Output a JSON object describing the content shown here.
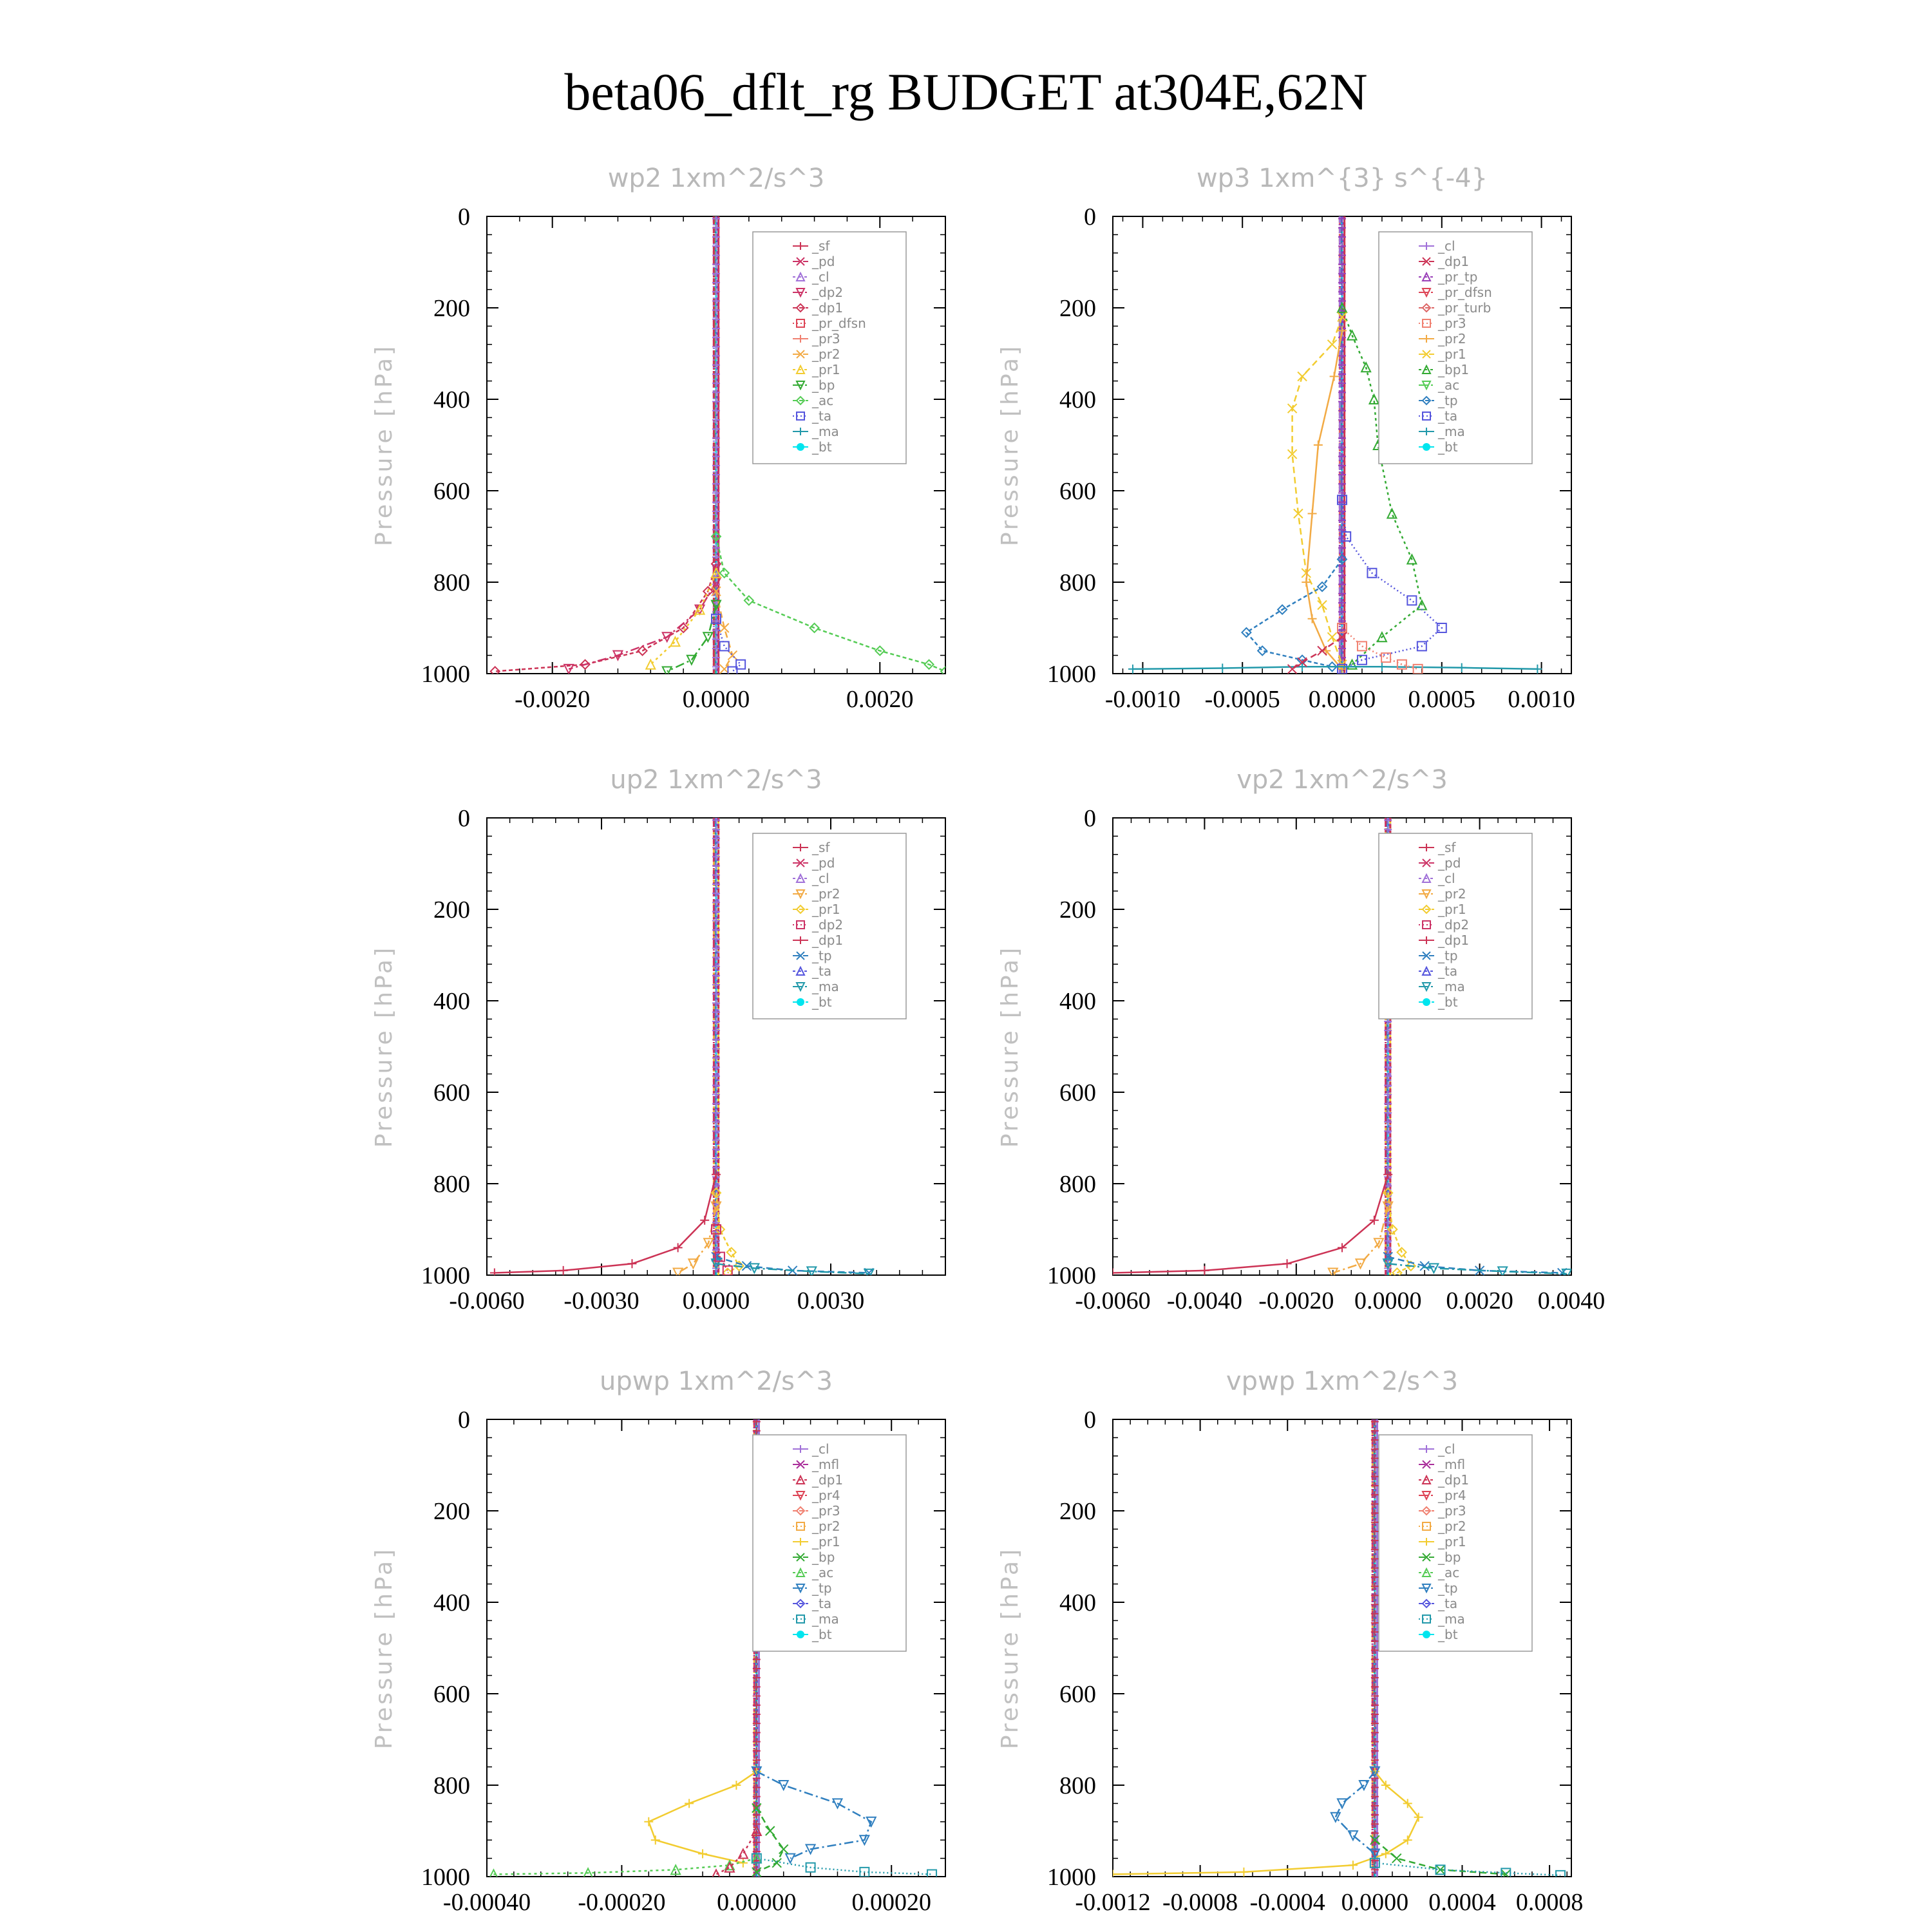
{
  "figure": {
    "title": "beta06_dflt_rg  BUDGET at304E,62N",
    "y_axis_label": "Pressure [hPa]"
  },
  "colors": {
    "_sf": "#cc3355",
    "_pd": "#cc3366",
    "_cl": "#a070d8",
    "_dp2": "#cc3366",
    "_dp1": "#cc3355",
    "_pr_dfsn": "#dd4455",
    "_pr_tp": "#9a40b8",
    "_pr_turb": "#dd6666",
    "_mfl": "#aa2d9a",
    "_pr4": "#dd4455",
    "_pr3": "#f08070",
    "_pr2": "#f2aa44",
    "_pr1": "#f2cc30",
    "_bp": "#33aa33",
    "_bp1": "#33aa33",
    "_ac": "#55cc55",
    "_tp": "#2f7fbf",
    "_ta": "#5555dd",
    "_ma": "#2299aa",
    "_bt": "#00e5ee"
  },
  "chart_data": [
    {
      "type": "line",
      "title": "wp2   1xm^2/s^3",
      "ylabel": "Pressure [hPa]",
      "ylim": [
        1000,
        0
      ],
      "xlim": [
        -0.0028,
        0.0028
      ],
      "xticks": [
        -0.002,
        0.0,
        0.002
      ],
      "xtick_labels": [
        "-0.0020",
        "0.0000",
        "0.0020"
      ],
      "yticks": [
        0,
        200,
        400,
        600,
        800,
        1000
      ],
      "ytick_labels": [
        "0",
        "200",
        "400",
        "600",
        "800",
        "1000"
      ],
      "legend": [
        "_sf",
        "_pd",
        "_cl",
        "_dp2",
        "_dp1",
        "_pr_dfsn",
        "_pr3",
        "_pr2",
        "_pr1",
        "_bp",
        "_ac",
        "_ta",
        "_ma",
        "_bt"
      ],
      "series": [
        {
          "name": "_ac",
          "x": [
            0,
            0.0001,
            0.0004,
            0.0012,
            0.002,
            0.0026,
            0.0028
          ],
          "y": [
            700,
            780,
            840,
            900,
            950,
            980,
            995
          ]
        },
        {
          "name": "_dp1",
          "x": [
            0,
            -0.0001,
            -0.0004,
            -0.0009,
            -0.0016,
            -0.0027
          ],
          "y": [
            760,
            820,
            900,
            950,
            980,
            995
          ]
        },
        {
          "name": "_dp2",
          "x": [
            0,
            -0.0002,
            -0.0006,
            -0.0012,
            -0.0018
          ],
          "y": [
            800,
            860,
            920,
            960,
            990
          ]
        },
        {
          "name": "_pr1",
          "x": [
            0,
            -0.0002,
            -0.0005,
            -0.0008
          ],
          "y": [
            780,
            860,
            930,
            980
          ]
        },
        {
          "name": "_pr2",
          "x": [
            0,
            0.0001,
            0.0002,
            0.0001
          ],
          "y": [
            820,
            900,
            960,
            990
          ]
        },
        {
          "name": "_bp",
          "x": [
            0,
            -0.0001,
            -0.0003,
            -0.0006
          ],
          "y": [
            850,
            920,
            970,
            995
          ]
        },
        {
          "name": "_ta",
          "x": [
            0,
            0.0001,
            0.0003,
            0.0002
          ],
          "y": [
            880,
            940,
            980,
            995
          ]
        }
      ]
    },
    {
      "type": "line",
      "title": "wp3   1xm^{3} s^{-4}",
      "ylabel": "Pressure [hPa]",
      "ylim": [
        1000,
        0
      ],
      "xlim": [
        -0.00115,
        0.00115
      ],
      "xticks": [
        -0.001,
        -0.0005,
        0.0,
        0.0005,
        0.001
      ],
      "xtick_labels": [
        "-0.0010",
        "-0.0005",
        "0.0000",
        "0.0005",
        "0.0010"
      ],
      "yticks": [
        0,
        200,
        400,
        600,
        800,
        1000
      ],
      "ytick_labels": [
        "0",
        "200",
        "400",
        "600",
        "800",
        "1000"
      ],
      "legend": [
        "_cl",
        "_dp1",
        "_pr_tp",
        "_pr_dfsn",
        "_pr_turb",
        "_pr3",
        "_pr2",
        "_pr1",
        "_bp1",
        "_ac",
        "_tp",
        "_ta",
        "_ma",
        "_bt"
      ],
      "series": [
        {
          "name": "_bp1",
          "x": [
            0,
            5e-05,
            0.00012,
            0.00016,
            0.00018,
            0.00025,
            0.00035,
            0.0004,
            0.0002,
            5e-05
          ],
          "y": [
            200,
            260,
            330,
            400,
            500,
            650,
            750,
            850,
            920,
            980
          ]
        },
        {
          "name": "_pr1",
          "x": [
            0,
            -5e-05,
            -0.0002,
            -0.00025,
            -0.00025,
            -0.00022,
            -0.00018,
            -0.0001,
            -5e-05,
            0.0
          ],
          "y": [
            220,
            280,
            350,
            420,
            520,
            650,
            780,
            850,
            920,
            980
          ]
        },
        {
          "name": "_pr2",
          "x": [
            0,
            -4e-05,
            -0.00012,
            -0.00015,
            -0.00018,
            -0.00015,
            -8e-05,
            0.0
          ],
          "y": [
            250,
            350,
            500,
            650,
            800,
            880,
            950,
            990
          ]
        },
        {
          "name": "_ta",
          "x": [
            0,
            2e-05,
            0.00015,
            0.00035,
            0.0005,
            0.0004,
            0.0001,
            0.0
          ],
          "y": [
            620,
            700,
            780,
            840,
            900,
            940,
            970,
            990
          ]
        },
        {
          "name": "_tp",
          "x": [
            0,
            -0.0001,
            -0.0003,
            -0.00048,
            -0.0004,
            -0.0002,
            -5e-05
          ],
          "y": [
            750,
            810,
            860,
            910,
            950,
            970,
            985
          ]
        },
        {
          "name": "_ma",
          "x": [
            -0.00105,
            -0.0006,
            -0.0002,
            0.0002,
            0.0006,
            0.00098
          ],
          "y": [
            990,
            988,
            985,
            985,
            987,
            990
          ]
        },
        {
          "name": "_pr3",
          "x": [
            0,
            0.0001,
            0.00022,
            0.0003,
            0.00038
          ],
          "y": [
            900,
            940,
            965,
            980,
            990
          ]
        },
        {
          "name": "_dp1",
          "x": [
            0,
            -0.0001,
            -0.0002,
            -0.00025
          ],
          "y": [
            920,
            950,
            975,
            990
          ]
        }
      ]
    },
    {
      "type": "line",
      "title": "up2   1xm^2/s^3",
      "ylabel": "Pressure [hPa]",
      "ylim": [
        1000,
        0
      ],
      "xlim": [
        -0.006,
        0.006
      ],
      "xticks": [
        -0.006,
        -0.003,
        0.0,
        0.003
      ],
      "xtick_labels": [
        "-0.0060",
        "-0.0030",
        "0.0000",
        "0.0030"
      ],
      "yticks": [
        0,
        200,
        400,
        600,
        800,
        1000
      ],
      "ytick_labels": [
        "0",
        "200",
        "400",
        "600",
        "800",
        "1000"
      ],
      "legend": [
        "_sf",
        "_pd",
        "_cl",
        "_pr2",
        "_pr1",
        "_dp2",
        "_dp1",
        "_tp",
        "_ta",
        "_ma",
        "_bt"
      ],
      "series": [
        {
          "name": "_dp1",
          "x": [
            0,
            -0.0003,
            -0.001,
            -0.0022,
            -0.004,
            -0.0058
          ],
          "y": [
            780,
            880,
            940,
            975,
            990,
            995
          ]
        },
        {
          "name": "_pr1",
          "x": [
            0,
            0.0001,
            0.0004,
            0.0006,
            0.0003
          ],
          "y": [
            820,
            900,
            950,
            980,
            995
          ]
        },
        {
          "name": "_pr2",
          "x": [
            0,
            -0.0002,
            -0.0006,
            -0.001
          ],
          "y": [
            850,
            930,
            975,
            995
          ]
        },
        {
          "name": "_tp",
          "x": [
            0,
            0.0008,
            0.002,
            0.004
          ],
          "y": [
            960,
            980,
            990,
            995
          ]
        },
        {
          "name": "_ma",
          "x": [
            0,
            0.001,
            0.0025,
            0.004
          ],
          "y": [
            975,
            985,
            992,
            997
          ]
        },
        {
          "name": "_dp2",
          "x": [
            0,
            0.0001,
            0.0003
          ],
          "y": [
            900,
            960,
            990
          ]
        }
      ]
    },
    {
      "type": "line",
      "title": "vp2   1xm^2/s^3",
      "ylabel": "Pressure [hPa]",
      "ylim": [
        1000,
        0
      ],
      "xlim": [
        -0.006,
        0.004
      ],
      "xticks": [
        -0.006,
        -0.004,
        -0.002,
        0.0,
        0.002,
        0.004
      ],
      "xtick_labels": [
        "-0.0060",
        "-0.0040",
        "-0.0020",
        "0.0000",
        "0.0020",
        "0.0040"
      ],
      "yticks": [
        0,
        200,
        400,
        600,
        800,
        1000
      ],
      "ytick_labels": [
        "0",
        "200",
        "400",
        "600",
        "800",
        "1000"
      ],
      "legend": [
        "_sf",
        "_pd",
        "_cl",
        "_pr2",
        "_pr1",
        "_dp2",
        "_dp1",
        "_tp",
        "_ta",
        "_ma",
        "_bt"
      ],
      "series": [
        {
          "name": "_dp1",
          "x": [
            0,
            -0.0003,
            -0.001,
            -0.0022,
            -0.004,
            -0.006
          ],
          "y": [
            780,
            880,
            940,
            975,
            990,
            995
          ]
        },
        {
          "name": "_pr1",
          "x": [
            0,
            0.0001,
            0.0003,
            0.0005,
            0.0002
          ],
          "y": [
            820,
            900,
            950,
            980,
            995
          ]
        },
        {
          "name": "_pr2",
          "x": [
            0,
            -0.0002,
            -0.0006,
            -0.0012
          ],
          "y": [
            850,
            930,
            975,
            995
          ]
        },
        {
          "name": "_tp",
          "x": [
            0,
            0.0008,
            0.002,
            0.0038
          ],
          "y": [
            960,
            980,
            990,
            995
          ]
        },
        {
          "name": "_ma",
          "x": [
            0,
            0.001,
            0.0025,
            0.0039
          ],
          "y": [
            975,
            985,
            992,
            997
          ]
        }
      ]
    },
    {
      "type": "line",
      "title": "upwp   1xm^2/s^3",
      "ylabel": "Pressure [hPa]",
      "ylim": [
        1000,
        0
      ],
      "xlim": [
        -0.0004,
        0.00028
      ],
      "xticks": [
        -0.0004,
        -0.0002,
        0.0,
        0.0002
      ],
      "xtick_labels": [
        "-0.00040",
        "-0.00020",
        "0.00000",
        "0.00020"
      ],
      "yticks": [
        0,
        200,
        400,
        600,
        800,
        1000
      ],
      "ytick_labels": [
        "0",
        "200",
        "400",
        "600",
        "800",
        "1000"
      ],
      "legend": [
        "_cl",
        "_mfl",
        "_dp1",
        "_pr4",
        "_pr3",
        "_pr2",
        "_pr1",
        "_bp",
        "_ac",
        "_tp",
        "_ta",
        "_ma",
        "_bt"
      ],
      "series": [
        {
          "name": "_pr1",
          "x": [
            0,
            -3e-05,
            -0.0001,
            -0.00016,
            -0.00015,
            -8e-05,
            -2e-05
          ],
          "y": [
            770,
            800,
            840,
            880,
            920,
            950,
            970
          ]
        },
        {
          "name": "_tp",
          "x": [
            0,
            4e-05,
            0.00012,
            0.00017,
            0.00016,
            8e-05,
            5e-05
          ],
          "y": [
            770,
            800,
            840,
            880,
            920,
            940,
            960
          ]
        },
        {
          "name": "_ac",
          "x": [
            -0.00039,
            -0.00025,
            -0.00012,
            -4e-05,
            0.0
          ],
          "y": [
            995,
            992,
            985,
            975,
            960
          ]
        },
        {
          "name": "_bp",
          "x": [
            0,
            2e-05,
            4e-05,
            3e-05,
            0.0
          ],
          "y": [
            850,
            900,
            940,
            970,
            990
          ]
        },
        {
          "name": "_ma",
          "x": [
            0,
            8e-05,
            0.00016,
            0.00026
          ],
          "y": [
            960,
            980,
            990,
            995
          ]
        },
        {
          "name": "_dp1",
          "x": [
            0,
            -2e-05,
            -4e-05,
            -6e-05
          ],
          "y": [
            900,
            950,
            980,
            995
          ]
        }
      ]
    },
    {
      "type": "line",
      "title": "vpwp   1xm^2/s^3",
      "ylabel": "Pressure [hPa]",
      "ylim": [
        1000,
        0
      ],
      "xlim": [
        -0.0012,
        0.0009
      ],
      "xticks": [
        -0.0012,
        -0.0008,
        -0.0004,
        0.0,
        0.0004,
        0.0008
      ],
      "xtick_labels": [
        "-0.0012",
        "-0.0008",
        "-0.0004",
        "0.0000",
        "0.0004",
        "0.0008"
      ],
      "yticks": [
        0,
        200,
        400,
        600,
        800,
        1000
      ],
      "ytick_labels": [
        "0",
        "200",
        "400",
        "600",
        "800",
        "1000"
      ],
      "legend": [
        "_cl",
        "_mfl",
        "_dp1",
        "_pr4",
        "_pr3",
        "_pr2",
        "_pr1",
        "_bp",
        "_ac",
        "_tp",
        "_ta",
        "_ma",
        "_bt"
      ],
      "series": [
        {
          "name": "_pr1",
          "x": [
            0,
            5e-05,
            0.00015,
            0.0002,
            0.00015,
            5e-05,
            -0.0001,
            -0.0006,
            -0.0012
          ],
          "y": [
            770,
            800,
            840,
            870,
            920,
            950,
            975,
            990,
            995
          ]
        },
        {
          "name": "_tp",
          "x": [
            0,
            -5e-05,
            -0.00015,
            -0.00018,
            -0.0001,
            0.0
          ],
          "y": [
            770,
            800,
            840,
            870,
            910,
            950
          ]
        },
        {
          "name": "_bp",
          "x": [
            0,
            0.0001,
            0.0003,
            0.0006
          ],
          "y": [
            920,
            960,
            985,
            995
          ]
        },
        {
          "name": "_ma",
          "x": [
            0,
            0.0003,
            0.0006,
            0.00085
          ],
          "y": [
            970,
            985,
            992,
            997
          ]
        }
      ]
    }
  ]
}
